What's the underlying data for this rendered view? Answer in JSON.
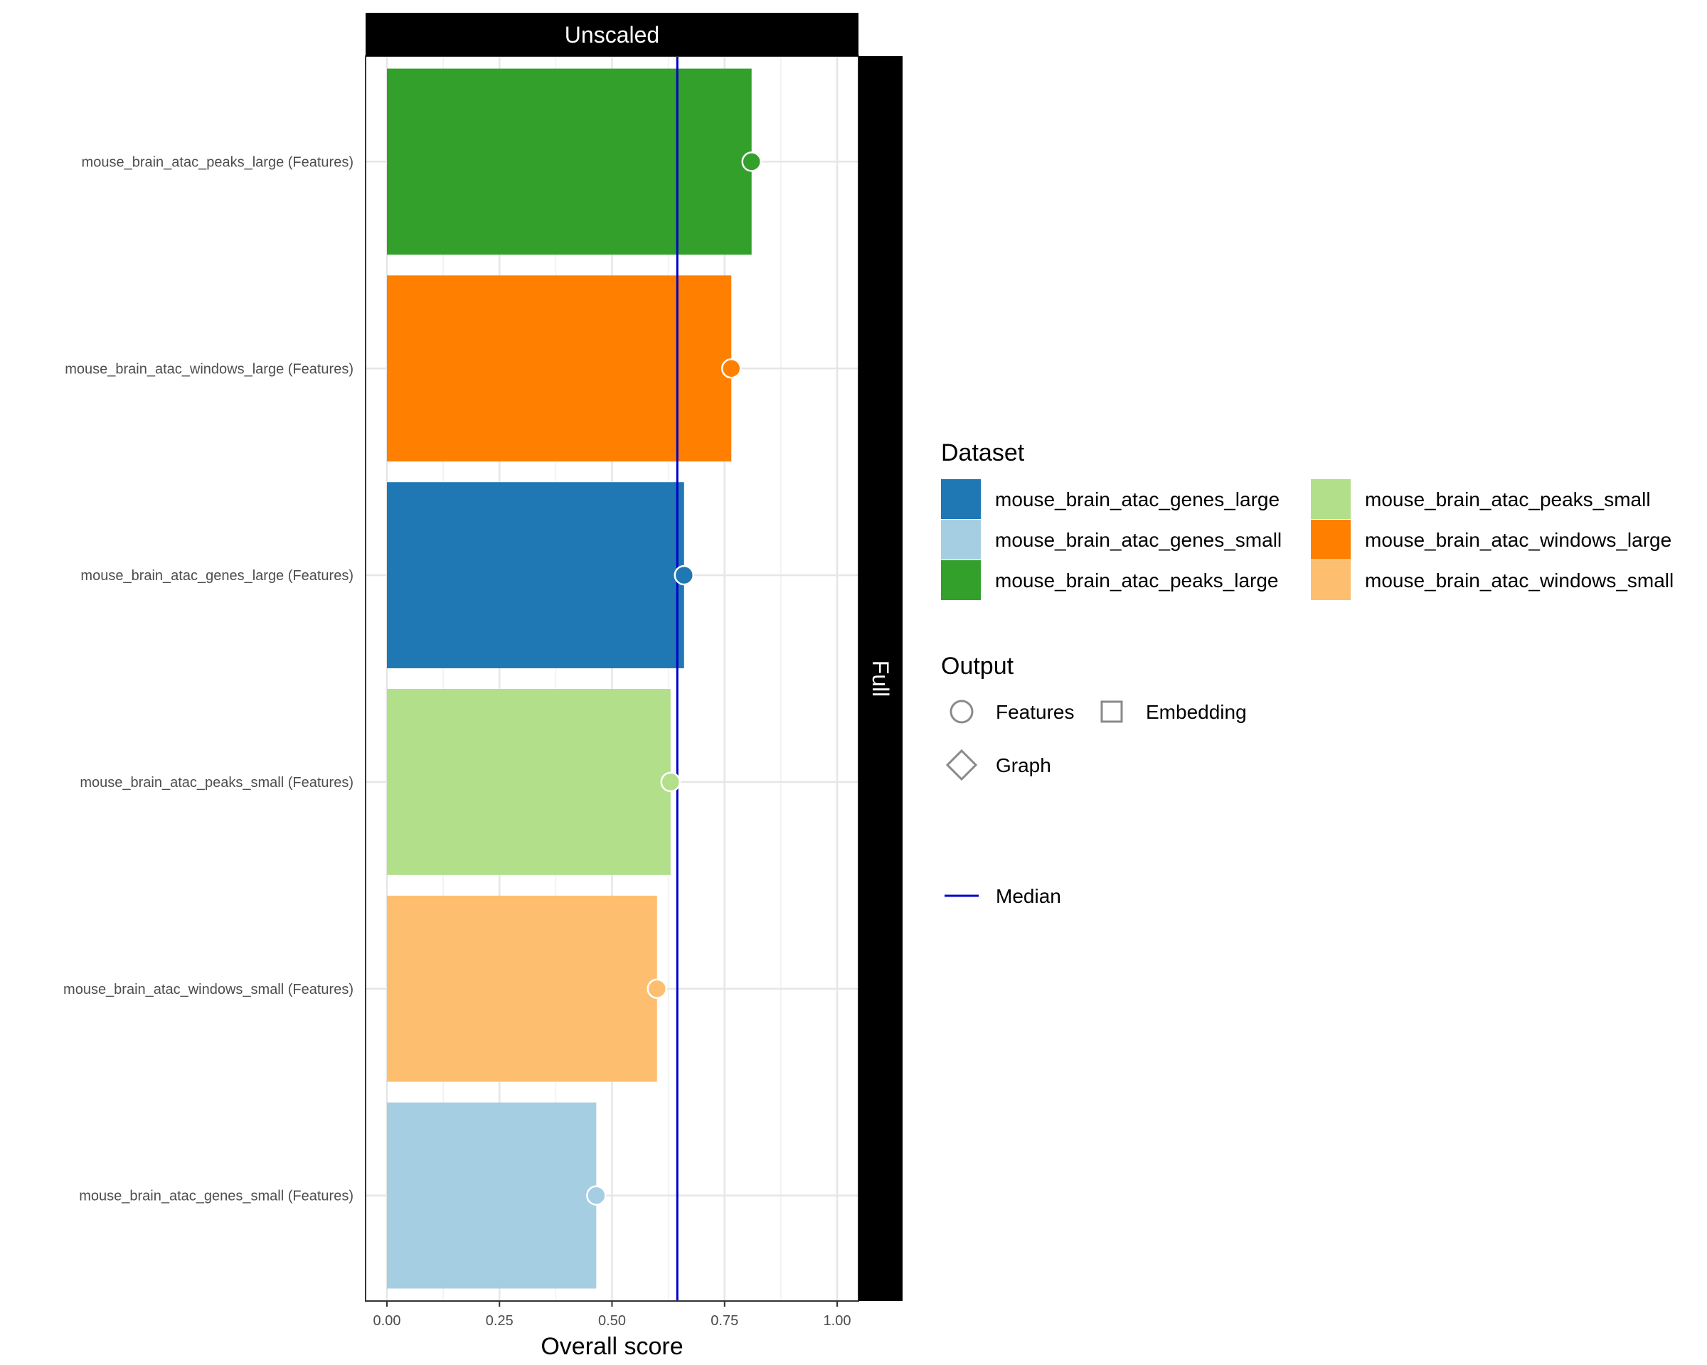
{
  "chart_data": {
    "type": "bar",
    "facet_top": "Unscaled",
    "facet_right": "Full",
    "xlabel": "Overall score",
    "xlim": [
      0,
      1.05
    ],
    "x_ticks": [
      "0.00",
      "0.25",
      "0.50",
      "0.75",
      "1.00"
    ],
    "x_tick_values": [
      0,
      0.25,
      0.5,
      0.75,
      1.0
    ],
    "median": 0.645,
    "grid": true,
    "categories": [
      "mouse_brain_atac_peaks_large (Features)",
      "mouse_brain_atac_windows_large (Features)",
      "mouse_brain_atac_genes_large (Features)",
      "mouse_brain_atac_peaks_small (Features)",
      "mouse_brain_atac_windows_small (Features)",
      "mouse_brain_atac_genes_small (Features)"
    ],
    "values": [
      0.81,
      0.765,
      0.66,
      0.63,
      0.6,
      0.465
    ],
    "bar_colors": [
      "#33a02c",
      "#ff7f00",
      "#1f78b4",
      "#b2df8a",
      "#fdbf6f",
      "#a6cee3"
    ],
    "legend": {
      "dataset_title": "Dataset",
      "dataset_items": [
        {
          "label": "mouse_brain_atac_genes_large",
          "color": "#1f78b4"
        },
        {
          "label": "mouse_brain_atac_genes_small",
          "color": "#a6cee3"
        },
        {
          "label": "mouse_brain_atac_peaks_large",
          "color": "#33a02c"
        },
        {
          "label": "mouse_brain_atac_peaks_small",
          "color": "#b2df8a"
        },
        {
          "label": "mouse_brain_atac_windows_large",
          "color": "#ff7f00"
        },
        {
          "label": "mouse_brain_atac_windows_small",
          "color": "#fdbf6f"
        }
      ],
      "output_title": "Output",
      "output_items": [
        {
          "label": "Features",
          "shape": "circle"
        },
        {
          "label": "Embedding",
          "shape": "square"
        },
        {
          "label": "Graph",
          "shape": "diamond"
        }
      ],
      "median_label": "Median",
      "median_color": "#0000cc"
    }
  }
}
